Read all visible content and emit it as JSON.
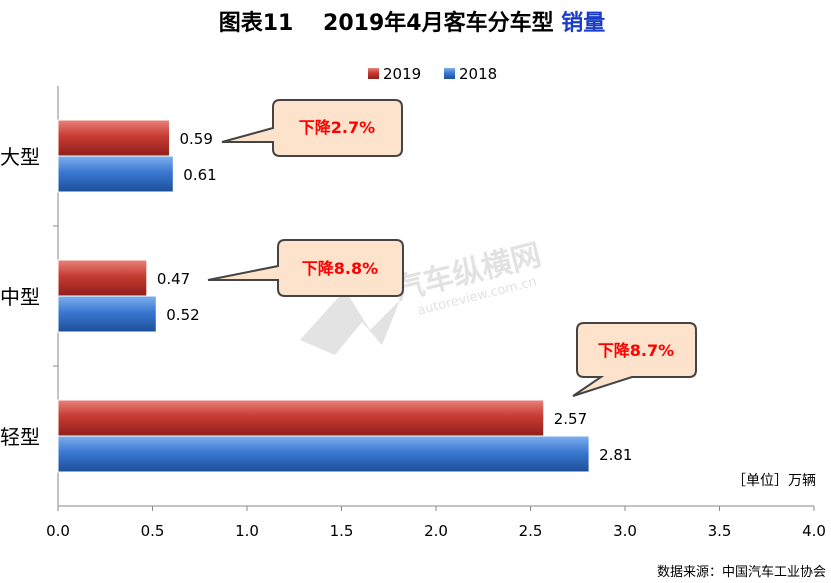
{
  "title": {
    "prefix": "图表11",
    "main": "2019年4月客车分车型",
    "highlight": "销量"
  },
  "unit_label": "［单位］万辆",
  "source": "数据来源：中国汽车工业协会",
  "watermark": {
    "cn": "汽车纵横网",
    "url": "autoreview.com.cn"
  },
  "colors": {
    "series_2019": "#c0392b",
    "series_2018": "#2f6fc8",
    "callout_fill": "#fde3cc",
    "callout_text": "#ff0000",
    "title_highlight": "#1a3cc8"
  },
  "chart_data": {
    "type": "bar",
    "orientation": "horizontal",
    "categories": [
      "大型",
      "中型",
      "轻型"
    ],
    "series": [
      {
        "name": "2019",
        "values": [
          0.59,
          0.47,
          2.57
        ]
      },
      {
        "name": "2018",
        "values": [
          0.61,
          0.52,
          2.81
        ]
      }
    ],
    "value_labels": [
      [
        "0.59",
        "0.47",
        "2.57"
      ],
      [
        "0.61",
        "0.52",
        "2.81"
      ]
    ],
    "xlim": [
      0,
      4.0
    ],
    "x_ticks": [
      "0.0",
      "0.5",
      "1.0",
      "1.5",
      "2.0",
      "2.5",
      "3.0",
      "3.5",
      "4.0"
    ],
    "legend_position": "top-center",
    "grid": false,
    "annotations": [
      "下降2.7%",
      "下降8.8%",
      "下降8.7%"
    ]
  }
}
